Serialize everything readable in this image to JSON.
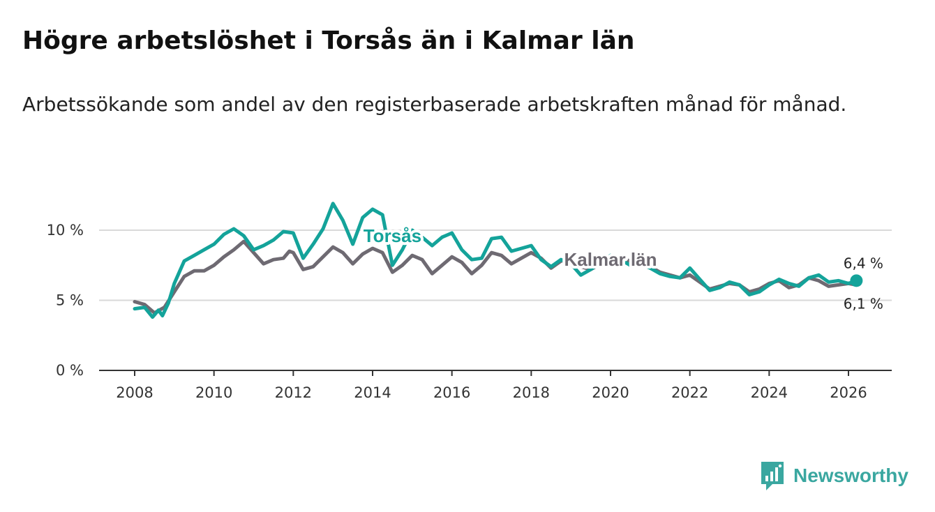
{
  "title": "Högre arbetslöshet i Torsås än i Kalmar län",
  "subtitle": "Arbetssökande som andel av den registerbaserade arbetskraften månad för månad.",
  "brand": {
    "name": "Newsworthy",
    "icon": "newsworthy-logo-icon",
    "color": "#3aa7a0"
  },
  "chart_data": {
    "type": "line",
    "title": "Högre arbetslöshet i Torsås än i Kalmar län",
    "xlabel": "",
    "ylabel": "",
    "x_ticks": [
      2008,
      2010,
      2012,
      2014,
      2016,
      2018,
      2020,
      2022,
      2024,
      2026
    ],
    "y_ticks": [
      0,
      5,
      10
    ],
    "y_tick_labels": [
      "0 %",
      "5 %",
      "10 %"
    ],
    "xlim": [
      2007.1,
      2028.0
    ],
    "ylim": [
      0,
      10.8
    ],
    "grid": true,
    "series": [
      {
        "name": "Kalmar län",
        "color": "#6e6a72",
        "points": [
          [
            2008.0,
            4.9
          ],
          [
            2008.25,
            4.7
          ],
          [
            2008.5,
            4.1
          ],
          [
            2008.75,
            4.5
          ],
          [
            2009.0,
            5.6
          ],
          [
            2009.25,
            6.7
          ],
          [
            2009.5,
            7.1
          ],
          [
            2009.75,
            7.1
          ],
          [
            2010.0,
            7.5
          ],
          [
            2010.25,
            8.1
          ],
          [
            2010.5,
            8.6
          ],
          [
            2010.75,
            9.2
          ],
          [
            2011.0,
            8.4
          ],
          [
            2011.25,
            7.6
          ],
          [
            2011.5,
            7.9
          ],
          [
            2011.75,
            8.0
          ],
          [
            2011.9,
            8.5
          ],
          [
            2012.0,
            8.4
          ],
          [
            2012.25,
            7.2
          ],
          [
            2012.5,
            7.4
          ],
          [
            2012.75,
            8.1
          ],
          [
            2013.0,
            8.8
          ],
          [
            2013.25,
            8.4
          ],
          [
            2013.5,
            7.6
          ],
          [
            2013.75,
            8.3
          ],
          [
            2014.0,
            8.7
          ],
          [
            2014.25,
            8.4
          ],
          [
            2014.5,
            7.0
          ],
          [
            2014.75,
            7.5
          ],
          [
            2015.0,
            8.2
          ],
          [
            2015.25,
            7.9
          ],
          [
            2015.5,
            6.9
          ],
          [
            2015.75,
            7.5
          ],
          [
            2016.0,
            8.1
          ],
          [
            2016.25,
            7.7
          ],
          [
            2016.5,
            6.9
          ],
          [
            2016.75,
            7.5
          ],
          [
            2017.0,
            8.4
          ],
          [
            2017.25,
            8.2
          ],
          [
            2017.5,
            7.6
          ],
          [
            2017.75,
            8.0
          ],
          [
            2018.0,
            8.4
          ],
          [
            2018.25,
            8.0
          ],
          [
            2018.5,
            7.3
          ],
          [
            2018.75,
            7.8
          ],
          [
            2019.0,
            7.9
          ],
          [
            2019.25,
            7.4
          ],
          [
            2019.5,
            7.2
          ],
          [
            2019.75,
            7.6
          ],
          [
            2020.0,
            7.9
          ],
          [
            2020.25,
            8.0
          ],
          [
            2020.5,
            7.8
          ],
          [
            2020.75,
            7.5
          ],
          [
            2021.0,
            7.4
          ],
          [
            2021.25,
            7.0
          ],
          [
            2021.5,
            6.8
          ],
          [
            2021.75,
            6.6
          ],
          [
            2022.0,
            6.8
          ],
          [
            2022.25,
            6.3
          ],
          [
            2022.5,
            5.8
          ],
          [
            2022.75,
            6.0
          ],
          [
            2023.0,
            6.2
          ],
          [
            2023.25,
            6.1
          ],
          [
            2023.5,
            5.6
          ],
          [
            2023.75,
            5.8
          ],
          [
            2024.0,
            6.2
          ],
          [
            2024.25,
            6.4
          ],
          [
            2024.5,
            5.9
          ],
          [
            2024.75,
            6.1
          ],
          [
            2025.0,
            6.6
          ],
          [
            2025.25,
            6.4
          ],
          [
            2025.5,
            6.0
          ],
          [
            2025.75,
            6.1
          ],
          [
            2026.0,
            6.2
          ],
          [
            2026.2,
            6.1
          ]
        ]
      },
      {
        "name": "Torsås",
        "color": "#14a39a",
        "points": [
          [
            2008.0,
            4.4
          ],
          [
            2008.25,
            4.5
          ],
          [
            2008.45,
            3.8
          ],
          [
            2008.6,
            4.3
          ],
          [
            2008.7,
            3.9
          ],
          [
            2008.85,
            4.8
          ],
          [
            2009.0,
            6.2
          ],
          [
            2009.25,
            7.8
          ],
          [
            2009.5,
            8.2
          ],
          [
            2009.75,
            8.6
          ],
          [
            2010.0,
            9.0
          ],
          [
            2010.25,
            9.7
          ],
          [
            2010.5,
            10.1
          ],
          [
            2010.75,
            9.6
          ],
          [
            2011.0,
            8.6
          ],
          [
            2011.25,
            8.9
          ],
          [
            2011.5,
            9.3
          ],
          [
            2011.75,
            9.9
          ],
          [
            2012.0,
            9.8
          ],
          [
            2012.25,
            8.0
          ],
          [
            2012.5,
            9.0
          ],
          [
            2012.75,
            10.1
          ],
          [
            2013.0,
            11.9
          ],
          [
            2013.25,
            10.7
          ],
          [
            2013.5,
            9.0
          ],
          [
            2013.75,
            10.9
          ],
          [
            2014.0,
            11.5
          ],
          [
            2014.25,
            11.1
          ],
          [
            2014.5,
            7.5
          ],
          [
            2014.75,
            8.6
          ],
          [
            2015.0,
            10.0
          ],
          [
            2015.25,
            9.5
          ],
          [
            2015.5,
            8.9
          ],
          [
            2015.75,
            9.5
          ],
          [
            2016.0,
            9.8
          ],
          [
            2016.25,
            8.6
          ],
          [
            2016.5,
            7.9
          ],
          [
            2016.75,
            8.0
          ],
          [
            2017.0,
            9.4
          ],
          [
            2017.25,
            9.5
          ],
          [
            2017.5,
            8.5
          ],
          [
            2017.75,
            8.7
          ],
          [
            2018.0,
            8.9
          ],
          [
            2018.25,
            7.9
          ],
          [
            2018.5,
            7.4
          ],
          [
            2018.75,
            7.9
          ],
          [
            2019.0,
            7.6
          ],
          [
            2019.25,
            6.8
          ],
          [
            2019.5,
            7.2
          ],
          [
            2019.75,
            7.7
          ],
          [
            2020.0,
            8.2
          ],
          [
            2020.25,
            7.9
          ],
          [
            2020.5,
            7.5
          ],
          [
            2020.75,
            7.6
          ],
          [
            2021.0,
            7.3
          ],
          [
            2021.25,
            6.9
          ],
          [
            2021.5,
            6.7
          ],
          [
            2021.75,
            6.6
          ],
          [
            2022.0,
            7.3
          ],
          [
            2022.25,
            6.5
          ],
          [
            2022.5,
            5.7
          ],
          [
            2022.75,
            5.9
          ],
          [
            2023.0,
            6.3
          ],
          [
            2023.25,
            6.1
          ],
          [
            2023.5,
            5.4
          ],
          [
            2023.75,
            5.6
          ],
          [
            2024.0,
            6.1
          ],
          [
            2024.25,
            6.5
          ],
          [
            2024.5,
            6.2
          ],
          [
            2024.75,
            6.0
          ],
          [
            2025.0,
            6.6
          ],
          [
            2025.25,
            6.8
          ],
          [
            2025.5,
            6.3
          ],
          [
            2025.75,
            6.4
          ],
          [
            2026.0,
            6.2
          ],
          [
            2026.2,
            6.4
          ]
        ]
      }
    ],
    "series_labels": [
      {
        "series": "Torsås",
        "text": "Torsås",
        "x": 2014.5,
        "y": 9.6
      },
      {
        "series": "Kalmar län",
        "text": "Kalmar län",
        "x": 2020.0,
        "y": 7.9
      }
    ],
    "end_labels": [
      {
        "series": "Torsås",
        "text": "6,4 %",
        "value": 6.4
      },
      {
        "series": "Kalmar län",
        "text": "6,1 %",
        "value": 6.1
      }
    ]
  }
}
